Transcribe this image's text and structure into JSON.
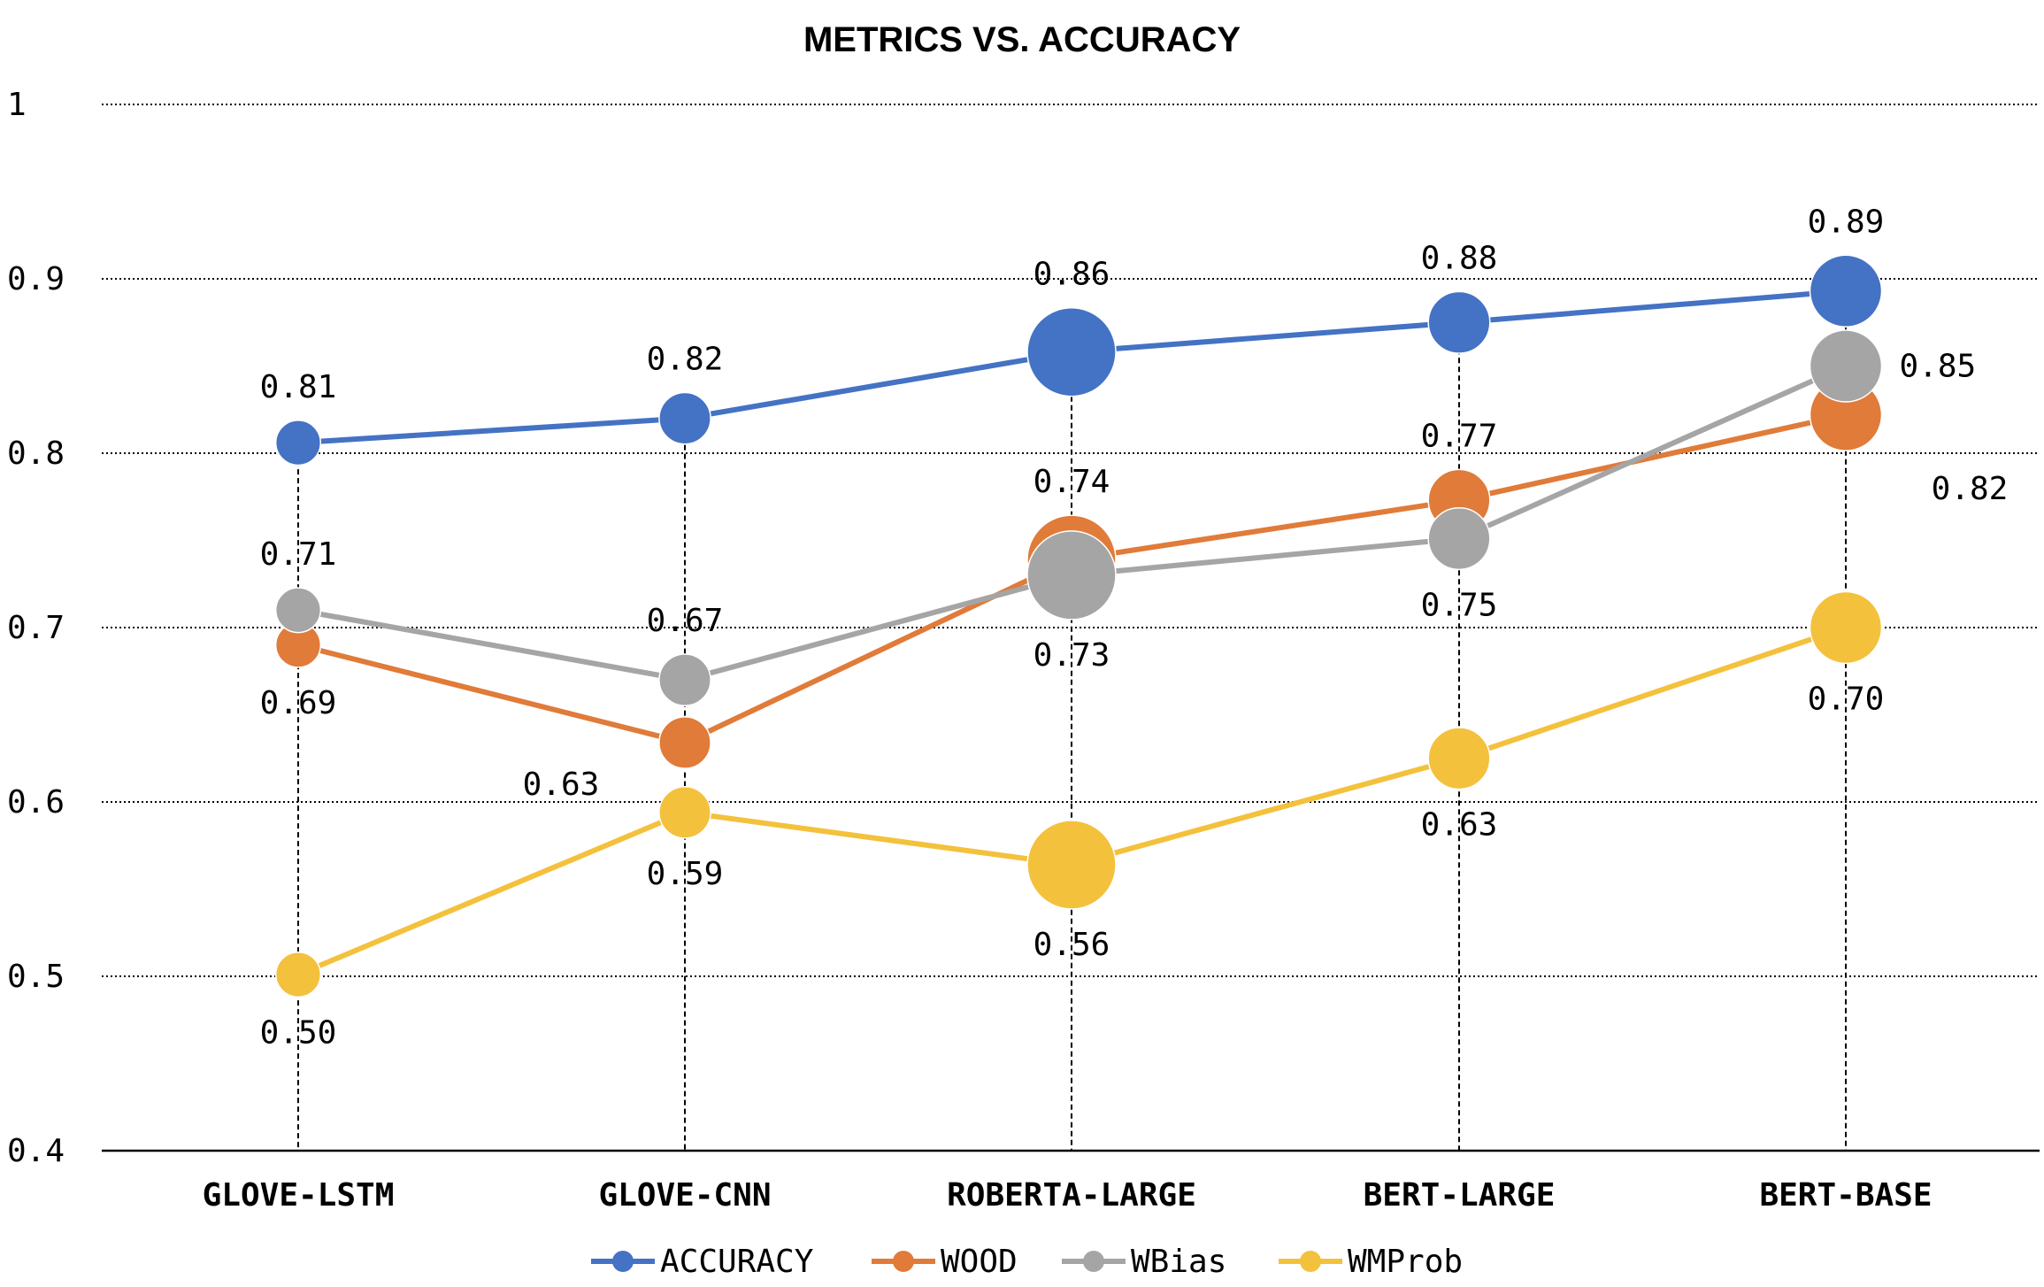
{
  "chart_data": {
    "type": "line",
    "title": "METRICS VS.  ACCURACY",
    "xlabel": "",
    "ylabel": "",
    "ylim": [
      0.4,
      1.0
    ],
    "yticks": [
      0.4,
      0.5,
      0.6,
      0.7,
      0.8,
      0.9,
      1.0
    ],
    "ytick_labels": [
      "0.4",
      "0.5",
      "0.6",
      "0.7",
      "0.8",
      "0.9",
      "1"
    ],
    "grid": "horizontal dotted",
    "drop_lines": true,
    "legend_position": "bottom",
    "categories": [
      "GLOVE-LSTM",
      "GLOVE-CNN",
      "ROBERTA-LARGE",
      "BERT-LARGE",
      "BERT-BASE"
    ],
    "series": [
      {
        "name": "ACCURACY",
        "color": "#4472C4",
        "values": [
          0.806,
          0.82,
          0.858,
          0.875,
          0.893
        ],
        "labels": [
          "0.81",
          "0.82",
          "0.86",
          "0.88",
          "0.89"
        ],
        "label_positions": [
          "above",
          "above",
          "above",
          "above",
          "above"
        ]
      },
      {
        "name": "WOOD",
        "color": "#E07B39",
        "values": [
          0.69,
          0.634,
          0.739,
          0.773,
          0.822
        ],
        "labels": [
          "0.69",
          "0.63",
          "0.74",
          "0.77",
          "0.82"
        ],
        "label_positions": [
          "below",
          "below-left",
          "above",
          "above",
          "below-right"
        ]
      },
      {
        "name": "WBias",
        "color": "#A5A5A5",
        "values": [
          0.71,
          0.67,
          0.73,
          0.751,
          0.85
        ],
        "labels": [
          "0.71",
          "0.67",
          "0.73",
          "0.75",
          "0.85"
        ],
        "label_positions": [
          "above",
          "above",
          "below",
          "below",
          "right"
        ]
      },
      {
        "name": "WMProb",
        "color": "#F4C13D",
        "values": [
          0.501,
          0.594,
          0.564,
          0.625,
          0.7
        ],
        "labels": [
          "0.50",
          "0.59",
          "0.56",
          "0.63",
          "0.70"
        ],
        "label_positions": [
          "below",
          "below",
          "below",
          "below",
          "below"
        ]
      }
    ],
    "marker_scale": [
      0.35,
      0.45,
      1.0,
      0.6,
      0.75
    ]
  }
}
